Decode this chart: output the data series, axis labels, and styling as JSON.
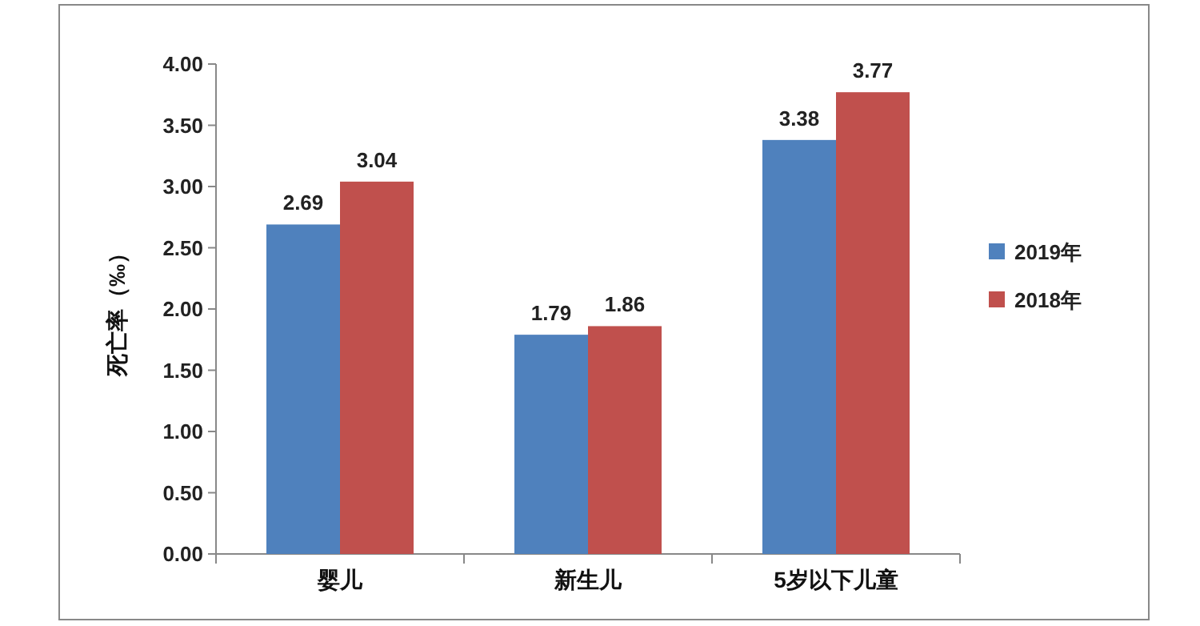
{
  "chart_data": {
    "type": "bar",
    "ylabel": "死亡率（‰）",
    "categories": [
      "婴儿",
      "新生儿",
      "5岁以下儿童"
    ],
    "series": [
      {
        "name": "2019年",
        "color": "#4f81bd",
        "values": [
          2.69,
          1.79,
          3.38
        ]
      },
      {
        "name": "2018年",
        "color": "#c0504d",
        "values": [
          3.04,
          1.86,
          3.77
        ]
      }
    ],
    "ylim": [
      0,
      4
    ],
    "yticks": [
      {
        "value": 0,
        "label": "0.00"
      },
      {
        "value": 0.5,
        "label": "0.50"
      },
      {
        "value": 1,
        "label": "1.00"
      },
      {
        "value": 1.5,
        "label": "1.50"
      },
      {
        "value": 2,
        "label": "2.00"
      },
      {
        "value": 2.5,
        "label": "2.50"
      },
      {
        "value": 3,
        "label": "3.00"
      },
      {
        "value": 3.5,
        "label": "3.50"
      },
      {
        "value": 4,
        "label": "4.00"
      }
    ],
    "data_labels": true,
    "legend": "right"
  }
}
